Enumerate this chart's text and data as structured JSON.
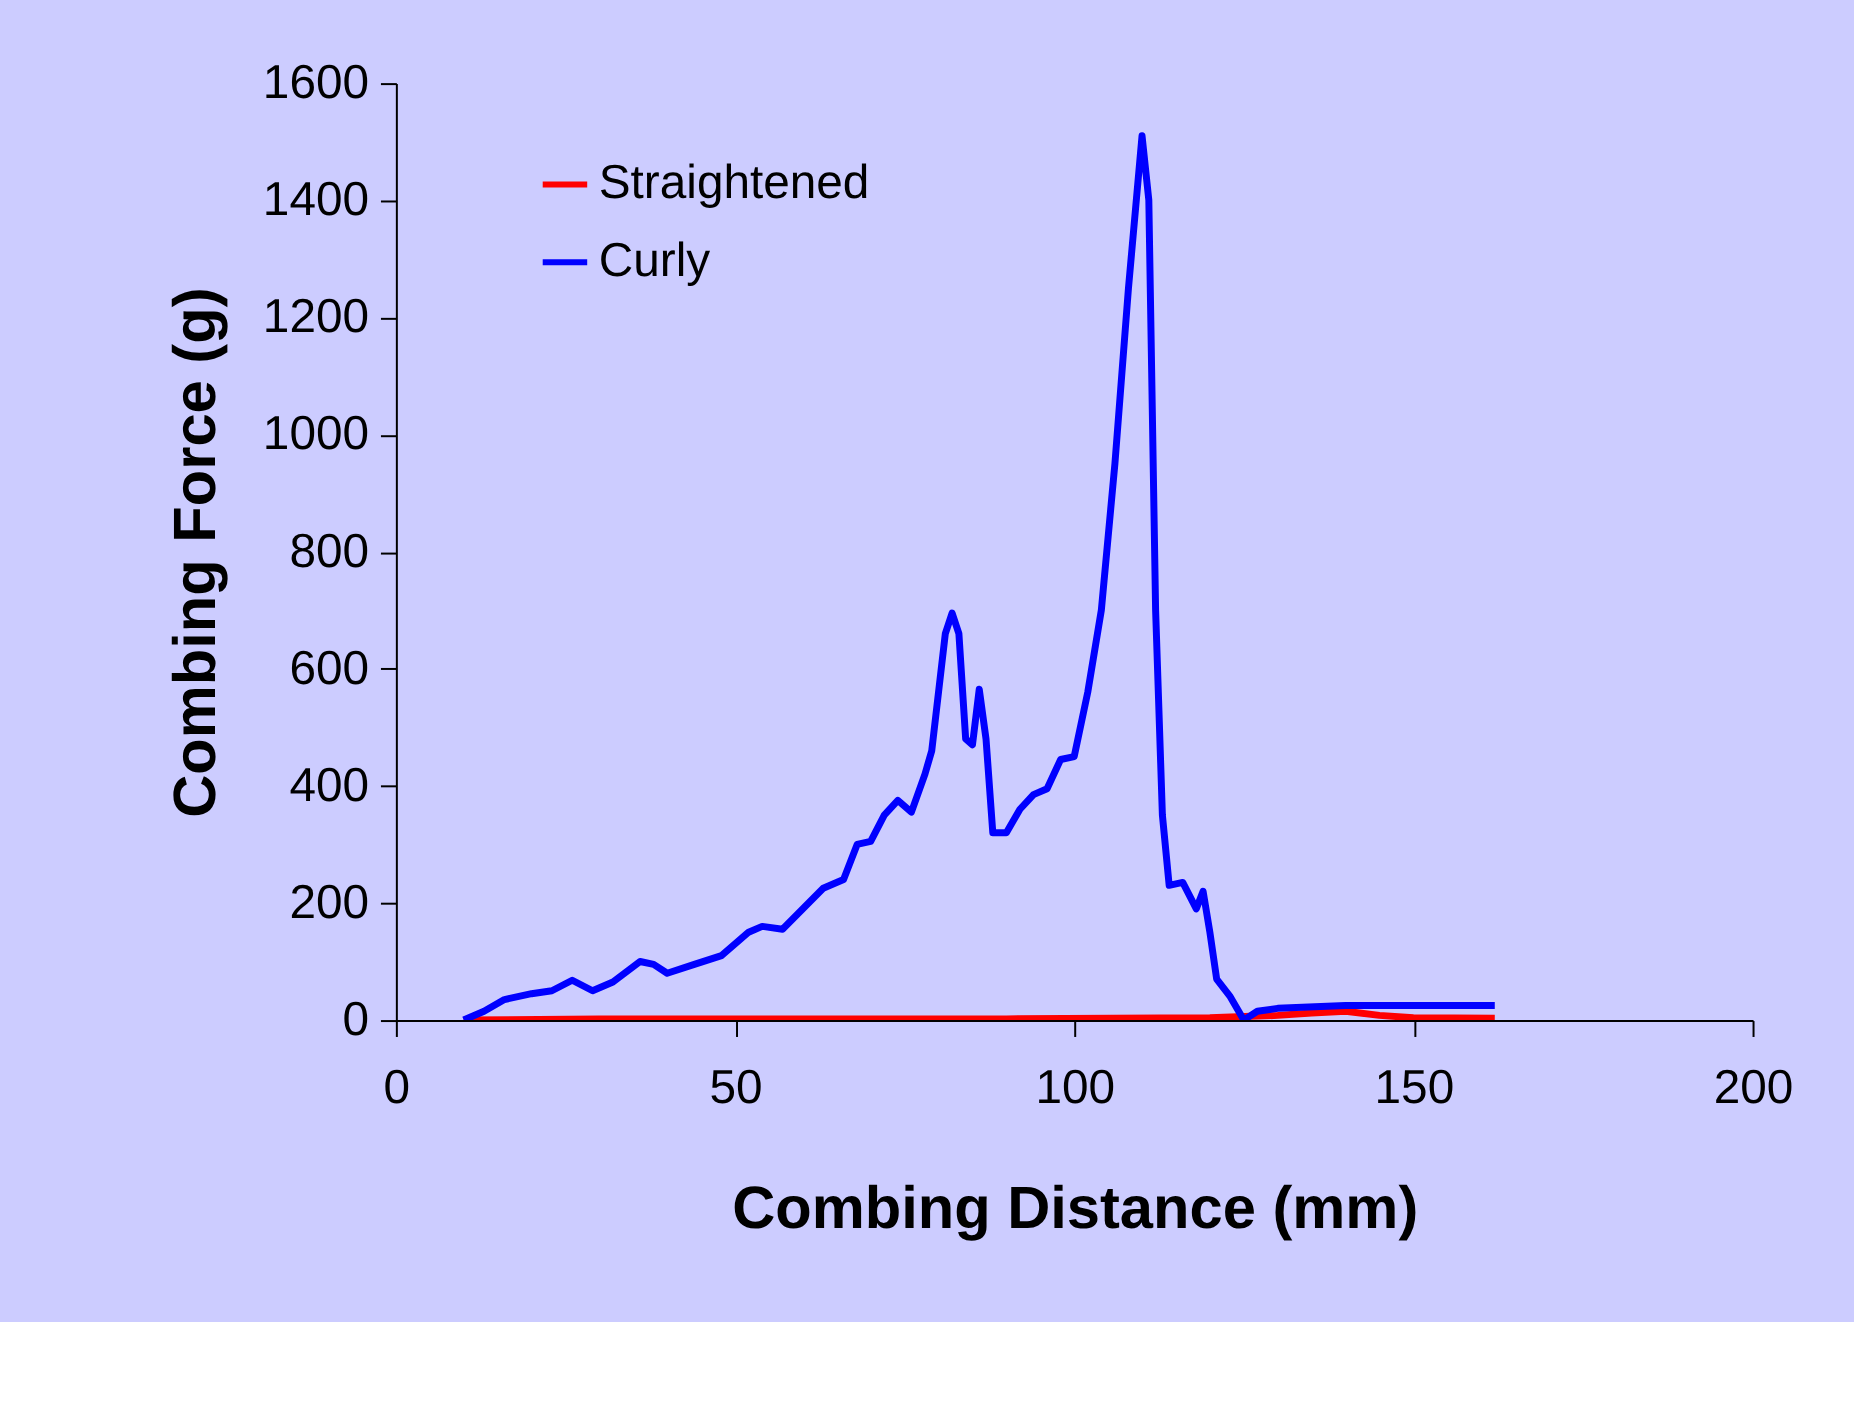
{
  "chart_data": {
    "type": "line",
    "xlabel": "Combing Distance (mm)",
    "ylabel": "Combing Force (g)",
    "xlim": [
      0,
      200
    ],
    "xticks": [
      0,
      50,
      100,
      150,
      200
    ],
    "ylim": [
      0,
      1600
    ],
    "yticks": [
      0,
      200,
      400,
      600,
      800,
      1000,
      1200,
      1400,
      1600
    ],
    "grid": false,
    "legend": "top left",
    "marker": "none",
    "line_style": "solid",
    "series": [
      {
        "name": "Straightened",
        "color": "#ff0000",
        "x": [
          10,
          30,
          60,
          90,
          120,
          130,
          135,
          140,
          145,
          150,
          162
        ],
        "values": [
          0,
          2,
          2,
          2,
          4,
          8,
          12,
          15,
          8,
          4,
          3
        ]
      },
      {
        "name": "Curly",
        "color": "#0000ff",
        "x": [
          10,
          13,
          16,
          20,
          23,
          26,
          29,
          32,
          36,
          38,
          40,
          44,
          48,
          52,
          54,
          57,
          60,
          63,
          66,
          68,
          70,
          72,
          74,
          76,
          78,
          79,
          80,
          81,
          82,
          83,
          84,
          85,
          86,
          87,
          88,
          90,
          92,
          94,
          96,
          98,
          100,
          102,
          104,
          106,
          108,
          110,
          111,
          112,
          113,
          114,
          116,
          118,
          119,
          120,
          121,
          123,
          125,
          127,
          130,
          140,
          150,
          162
        ],
        "values": [
          0,
          15,
          35,
          45,
          50,
          68,
          50,
          65,
          100,
          95,
          80,
          95,
          110,
          150,
          160,
          155,
          190,
          225,
          240,
          300,
          305,
          350,
          375,
          355,
          420,
          460,
          560,
          660,
          695,
          660,
          480,
          470,
          565,
          480,
          320,
          320,
          360,
          385,
          395,
          445,
          450,
          560,
          700,
          950,
          1250,
          1510,
          1400,
          700,
          350,
          230,
          235,
          190,
          220,
          150,
          70,
          40,
          0,
          15,
          20,
          25,
          25,
          25
        ]
      }
    ]
  }
}
